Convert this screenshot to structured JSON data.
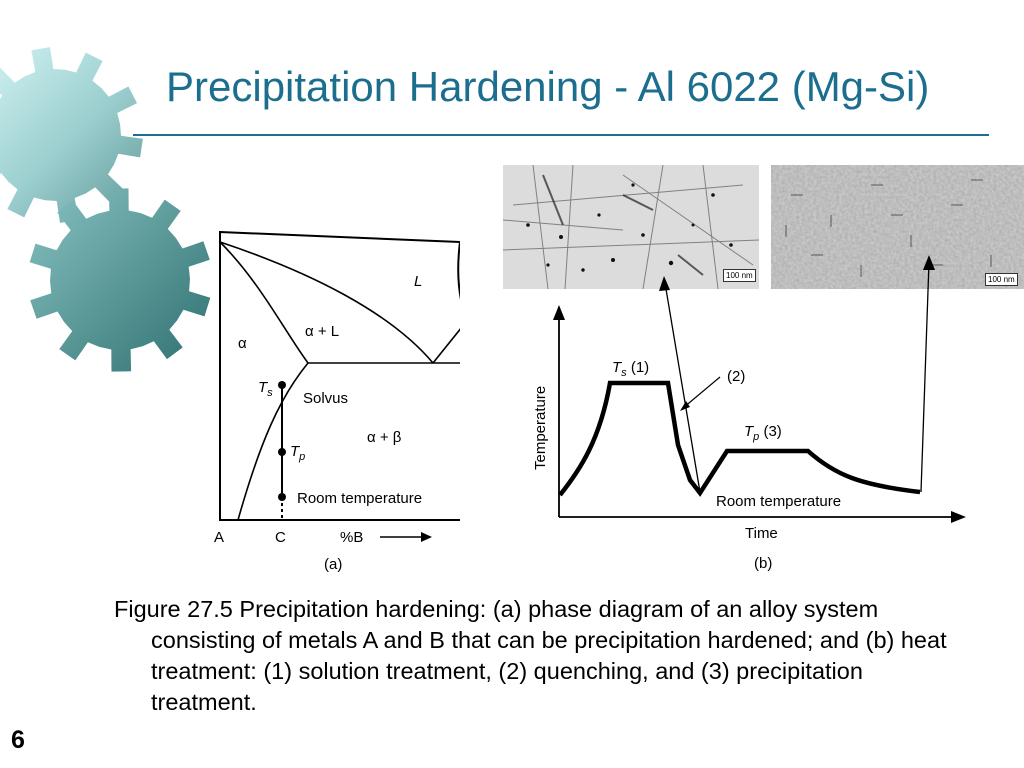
{
  "slide": {
    "title": "Precipitation Hardening - Al 6022 (Mg-Si)",
    "slide_number": "6",
    "accent_color": "#1b6e8e",
    "decoration": "gear-icon"
  },
  "micrographs": [
    {
      "scale_label": "100 nm"
    },
    {
      "scale_label": "100 nm"
    }
  ],
  "phase_diagram": {
    "region_L": "L",
    "region_alpha": "α",
    "region_alpha_L": "α + L",
    "region_solvus": "Solvus",
    "region_alpha_beta": "α + β",
    "point_Ts": {
      "main": "T",
      "sub": "s"
    },
    "point_Tp": {
      "main": "T",
      "sub": "p"
    },
    "room_temperature": "Room temperature",
    "x_label_A": "A",
    "x_label_C": "C",
    "x_label_B": "%B",
    "panel_label": "(a)"
  },
  "heat_treatment": {
    "y_label": "Temperature",
    "x_label": "Time",
    "ts_label": {
      "main": "T",
      "sub": "s",
      "suffix": " (1)"
    },
    "quench_label": "(2)",
    "tp_label": {
      "main": "T",
      "sub": "p",
      "suffix": " (3)"
    },
    "room_temperature": "Room temperature",
    "panel_label": "(b)"
  },
  "caption": "Figure 27.5  Precipitation hardening: (a) phase diagram of an alloy system consisting of metals A and B that can be precipitation hardened; and (b) heat treatment: (1) solution treatment, (2) quenching, and (3) precipitation treatment."
}
